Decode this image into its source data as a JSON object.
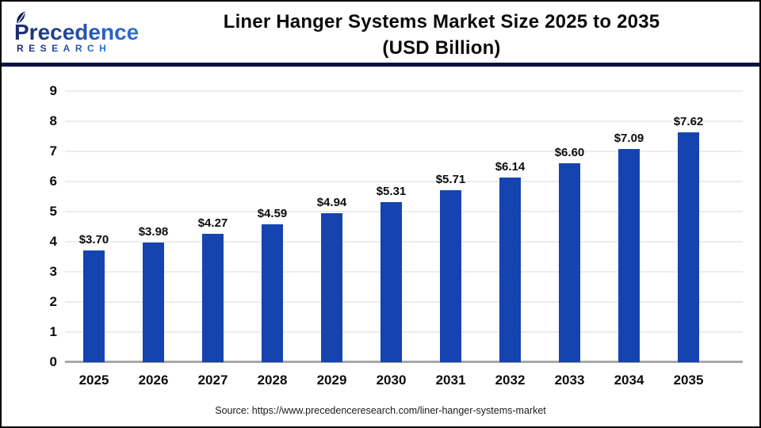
{
  "logo": {
    "name": "Precedence",
    "subname": "RESEARCH"
  },
  "header": {
    "title_line1": "Liner Hanger Systems Market Size 2025 to 2035",
    "title_line2": "(USD Billion)"
  },
  "chart_data": {
    "type": "bar",
    "title": "Liner Hanger Systems Market Size 2025 to 2035 (USD Billion)",
    "categories": [
      "2025",
      "2026",
      "2027",
      "2028",
      "2029",
      "2030",
      "2031",
      "2032",
      "2033",
      "2034",
      "2035"
    ],
    "values": [
      3.7,
      3.98,
      4.27,
      4.59,
      4.94,
      5.31,
      5.71,
      6.14,
      6.6,
      7.09,
      7.62
    ],
    "value_labels": [
      "$3.70",
      "$3.98",
      "$4.27",
      "$4.59",
      "$4.94",
      "$5.31",
      "$5.71",
      "$6.14",
      "$6.60",
      "$7.09",
      "$7.62"
    ],
    "xlabel": "",
    "ylabel": "",
    "ylim": [
      0,
      9
    ],
    "ytick_interval": 1,
    "grid": true,
    "legend": "none",
    "bar_color": "#1544b0"
  },
  "footer": {
    "source": "Source: https://www.precedenceresearch.com/liner-hanger-systems-market"
  },
  "colors": {
    "bar": "#1544b0",
    "divider": "#0d123f",
    "frame_border": "#000000",
    "gridline": "#ededed",
    "baseline": "#a8a8a8",
    "logo_gradient_start": "#1b2a6e",
    "logo_gradient_end": "#2f74d8",
    "text": "#0d0d0d"
  }
}
